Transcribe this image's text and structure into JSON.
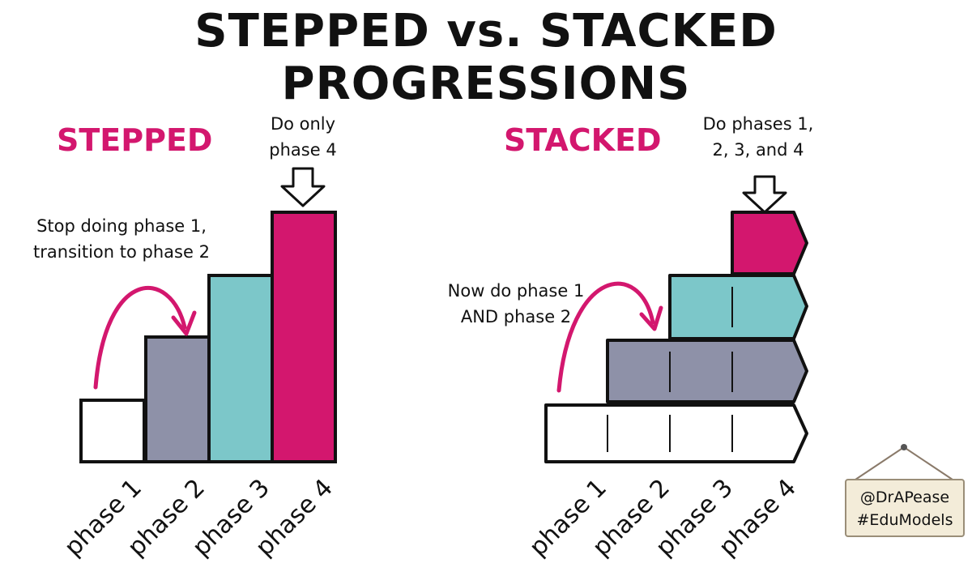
{
  "title": "STEPPED vs. STACKED PROGRESSIONS",
  "stepped": {
    "heading": "STEPPED",
    "top_note": [
      "Do only",
      "phase 4"
    ],
    "side_note": [
      "Stop doing phase 1,",
      "transition to phase 2"
    ]
  },
  "stacked": {
    "heading": "STACKED",
    "top_note": [
      "Do phases 1,",
      "2, 3, and 4"
    ],
    "side_note": [
      "Now do phase 1",
      "AND phase 2"
    ]
  },
  "phases": [
    "phase 1",
    "phase 2",
    "phase 3",
    "phase 4"
  ],
  "colors": {
    "phase1": "#ffffff",
    "phase2": "#8e91a8",
    "phase3": "#7cc7c9",
    "phase4": "#d3176e",
    "accent": "#d3176e"
  },
  "sign": {
    "line1": "@DrAPease",
    "line2": "#EduModels"
  }
}
